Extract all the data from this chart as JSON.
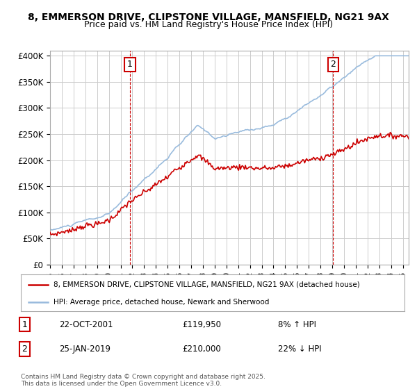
{
  "title_line1": "8, EMMERSON DRIVE, CLIPSTONE VILLAGE, MANSFIELD, NG21 9AX",
  "title_line2": "Price paid vs. HM Land Registry's House Price Index (HPI)",
  "ylim": [
    0,
    410000
  ],
  "yticks": [
    0,
    50000,
    100000,
    150000,
    200000,
    250000,
    300000,
    350000,
    400000
  ],
  "ytick_labels": [
    "£0",
    "£50K",
    "£100K",
    "£150K",
    "£200K",
    "£250K",
    "£300K",
    "£350K",
    "£400K"
  ],
  "red_line_color": "#cc0000",
  "blue_line_color": "#99bbdd",
  "grid_color": "#cccccc",
  "background_color": "#ffffff",
  "marker1_x": 2001.8,
  "marker1_y": 119950,
  "marker1_label": "1",
  "marker1_date": "22-OCT-2001",
  "marker1_price": "£119,950",
  "marker1_hpi": "8% ↑ HPI",
  "marker2_x": 2019.07,
  "marker2_y": 210000,
  "marker2_label": "2",
  "marker2_date": "25-JAN-2019",
  "marker2_price": "£210,000",
  "marker2_hpi": "22% ↓ HPI",
  "legend_label_red": "8, EMMERSON DRIVE, CLIPSTONE VILLAGE, MANSFIELD, NG21 9AX (detached house)",
  "legend_label_blue": "HPI: Average price, detached house, Newark and Sherwood",
  "footer": "Contains HM Land Registry data © Crown copyright and database right 2025.\nThis data is licensed under the Open Government Licence v3.0.",
  "xmin": 1995,
  "xmax": 2025.5
}
